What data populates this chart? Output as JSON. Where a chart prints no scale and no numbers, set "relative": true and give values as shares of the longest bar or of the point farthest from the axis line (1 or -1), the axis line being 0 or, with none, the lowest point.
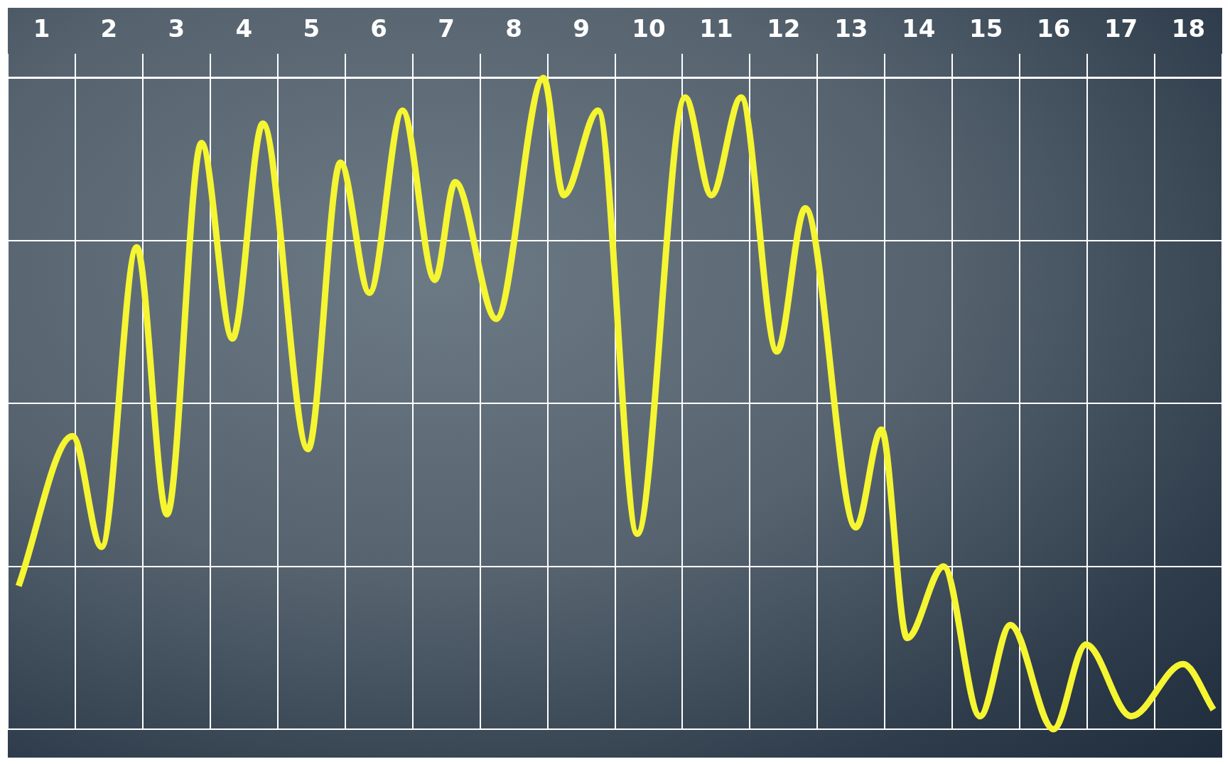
{
  "chart_data": {
    "type": "line",
    "relative": true,
    "x": [
      0.16,
      0.96,
      1.39,
      1.91,
      2.36,
      2.87,
      3.33,
      3.78,
      4.45,
      4.93,
      5.36,
      5.85,
      6.33,
      6.63,
      7.24,
      7.94,
      8.24,
      8.75,
      9.33,
      10.04,
      10.43,
      10.87,
      11.4,
      11.82,
      12.57,
      12.95,
      13.33,
      13.87,
      14.41,
      14.86,
      15.5,
      15.98,
      16.65,
      17.42,
      17.87
    ],
    "xlim": [
      0,
      18
    ],
    "xticks": [
      {
        "value": 0.5,
        "label": "1"
      },
      {
        "value": 1.5,
        "label": "2"
      },
      {
        "value": 2.5,
        "label": "3"
      },
      {
        "value": 3.5,
        "label": "4"
      },
      {
        "value": 4.5,
        "label": "5"
      },
      {
        "value": 5.5,
        "label": "6"
      },
      {
        "value": 6.5,
        "label": "7"
      },
      {
        "value": 7.5,
        "label": "8"
      },
      {
        "value": 8.5,
        "label": "9"
      },
      {
        "value": 9.5,
        "label": "10"
      },
      {
        "value": 10.5,
        "label": "11"
      },
      {
        "value": 11.5,
        "label": "12"
      },
      {
        "value": 12.5,
        "label": "13"
      },
      {
        "value": 13.5,
        "label": "14"
      },
      {
        "value": 14.5,
        "label": "15"
      },
      {
        "value": 15.5,
        "label": "16"
      },
      {
        "value": 16.5,
        "label": "17"
      },
      {
        "value": 17.5,
        "label": "18"
      }
    ],
    "series": [
      {
        "color": "#f5f532",
        "values": [
          0.22,
          0.45,
          0.28,
          0.74,
          0.33,
          0.9,
          0.6,
          0.93,
          0.43,
          0.87,
          0.67,
          0.95,
          0.69,
          0.84,
          0.63,
          1,
          0.82,
          0.95,
          0.3,
          0.97,
          0.82,
          0.97,
          0.58,
          0.8,
          0.31,
          0.46,
          0.14,
          0.25,
          0.02,
          0.16,
          0,
          0.13,
          0.02,
          0.1,
          0.03
        ]
      }
    ],
    "grid": true,
    "legend": false,
    "marker": "none"
  }
}
